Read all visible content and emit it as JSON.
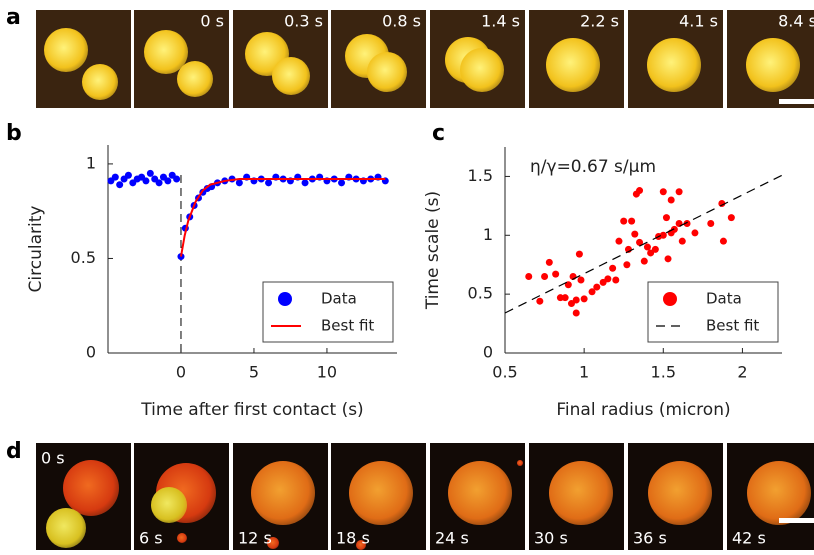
{
  "panel_a": {
    "label": "a",
    "frames": [
      "0 s",
      "0.3 s",
      "0.8 s",
      "1.4 s",
      "2.2 s",
      "4.1 s",
      "8.4 s"
    ]
  },
  "panel_d": {
    "label": "d",
    "frames": [
      "0 s",
      "6 s",
      "12 s",
      "18 s",
      "24 s",
      "30 s",
      "36 s",
      "42 s"
    ]
  },
  "chart_data": [
    {
      "type": "scatter",
      "panel": "b",
      "xlabel": "Time after first contact (s)",
      "ylabel": "Circularity",
      "xlim": [
        -5,
        14.8
      ],
      "xticks": [
        0,
        5,
        10
      ],
      "ylim": [
        0,
        1.1
      ],
      "yticks": [
        0,
        0.5,
        1
      ],
      "vline": 0,
      "legend": "lower right",
      "series": [
        {
          "name": "Data",
          "color": "#0000ff",
          "mode": "markers",
          "x": [
            -4.8,
            -4.5,
            -4.2,
            -3.9,
            -3.6,
            -3.3,
            -3.0,
            -2.7,
            -2.4,
            -2.1,
            -1.8,
            -1.5,
            -1.2,
            -0.9,
            -0.6,
            -0.3,
            0,
            0.3,
            0.6,
            0.9,
            1.2,
            1.5,
            1.8,
            2.1,
            2.5,
            3,
            3.5,
            4,
            4.5,
            5,
            5.5,
            6,
            6.5,
            7,
            7.5,
            8,
            8.5,
            9,
            9.5,
            10,
            10.5,
            11,
            11.5,
            12,
            12.5,
            13,
            13.5,
            14
          ],
          "values": [
            0.91,
            0.93,
            0.89,
            0.92,
            0.94,
            0.9,
            0.92,
            0.93,
            0.91,
            0.95,
            0.92,
            0.9,
            0.93,
            0.91,
            0.94,
            0.92,
            0.51,
            0.66,
            0.72,
            0.78,
            0.82,
            0.85,
            0.87,
            0.88,
            0.9,
            0.91,
            0.92,
            0.9,
            0.93,
            0.91,
            0.92,
            0.9,
            0.93,
            0.92,
            0.91,
            0.93,
            0.9,
            0.92,
            0.93,
            0.91,
            0.92,
            0.9,
            0.93,
            0.92,
            0.91,
            0.92,
            0.93,
            0.91
          ]
        },
        {
          "name": "Best fit",
          "color": "#ff0000",
          "mode": "line",
          "dash": false,
          "x": [
            0,
            0.25,
            0.5,
            1,
            1.5,
            2,
            3,
            4,
            6,
            8,
            10,
            12,
            14
          ],
          "values": [
            0.51,
            0.62,
            0.7,
            0.8,
            0.86,
            0.89,
            0.91,
            0.92,
            0.92,
            0.92,
            0.92,
            0.92,
            0.92
          ]
        }
      ]
    },
    {
      "type": "scatter",
      "panel": "c",
      "xlabel": "Final radius (micron)",
      "ylabel": "Time scale (s)",
      "annotation": "η/γ=0.67 s/μm",
      "xlim": [
        0.5,
        2.25
      ],
      "xticks": [
        0.5,
        1,
        1.5,
        2
      ],
      "ylim": [
        0,
        1.75
      ],
      "yticks": [
        0,
        0.5,
        1,
        1.5
      ],
      "legend": "lower right",
      "series": [
        {
          "name": "Data",
          "color": "#ff0000",
          "mode": "markers",
          "x": [
            0.65,
            0.72,
            0.75,
            0.78,
            0.82,
            0.85,
            0.88,
            0.9,
            0.92,
            0.93,
            0.95,
            0.95,
            0.97,
            0.98,
            1.0,
            1.05,
            1.08,
            1.12,
            1.15,
            1.18,
            1.2,
            1.22,
            1.25,
            1.27,
            1.28,
            1.3,
            1.32,
            1.33,
            1.35,
            1.35,
            1.38,
            1.4,
            1.42,
            1.45,
            1.47,
            1.5,
            1.5,
            1.52,
            1.53,
            1.55,
            1.55,
            1.57,
            1.6,
            1.6,
            1.62,
            1.65,
            1.7,
            1.8,
            1.87,
            1.88,
            1.93
          ],
          "values": [
            0.65,
            0.44,
            0.65,
            0.77,
            0.67,
            0.47,
            0.47,
            0.58,
            0.42,
            0.65,
            0.34,
            0.45,
            0.84,
            0.62,
            0.46,
            0.52,
            0.56,
            0.6,
            0.63,
            0.72,
            0.62,
            0.95,
            1.12,
            0.75,
            0.88,
            1.12,
            1.01,
            1.35,
            0.94,
            1.38,
            0.78,
            0.9,
            0.85,
            0.88,
            0.99,
            1.0,
            1.37,
            1.15,
            0.8,
            1.02,
            1.3,
            1.05,
            1.37,
            1.1,
            0.95,
            1.1,
            1.02,
            1.1,
            1.27,
            0.95,
            1.15
          ]
        },
        {
          "name": "Best fit",
          "color": "#000000",
          "mode": "line",
          "dash": true,
          "x": [
            0.5,
            2.25
          ],
          "values": [
            0.34,
            1.51
          ]
        }
      ]
    }
  ]
}
